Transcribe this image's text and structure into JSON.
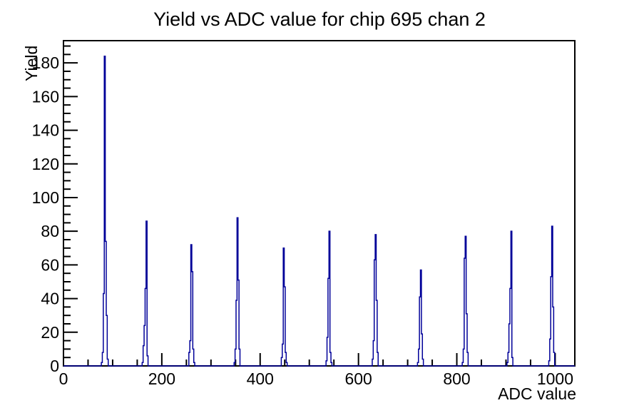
{
  "page": {
    "background_color": "#ffffff"
  },
  "chart_data": {
    "type": "bar",
    "title": "Yield vs ADC value for chip 695 chan 2",
    "xlabel": "ADC value",
    "ylabel": "Yield",
    "xlim": [
      0,
      1040
    ],
    "ylim": [
      0,
      193.2
    ],
    "x_major_ticks": [
      0,
      200,
      400,
      600,
      800,
      1000
    ],
    "x_minor_step": 50,
    "y_major_ticks": [
      0,
      20,
      40,
      60,
      80,
      100,
      120,
      140,
      160,
      180
    ],
    "y_minor_step": 5,
    "grid": false,
    "legend": false,
    "line_color": "#000099",
    "axis_color": "#000000",
    "bin_width": 2,
    "peaks": [
      {
        "adc": 84,
        "yield": 184
      },
      {
        "adc": 169,
        "yield": 86
      },
      {
        "adc": 260,
        "yield": 72
      },
      {
        "adc": 354,
        "yield": 88
      },
      {
        "adc": 448,
        "yield": 70
      },
      {
        "adc": 541,
        "yield": 80
      },
      {
        "adc": 635,
        "yield": 78
      },
      {
        "adc": 727,
        "yield": 57
      },
      {
        "adc": 818,
        "yield": 77
      },
      {
        "adc": 911,
        "yield": 80
      },
      {
        "adc": 994,
        "yield": 83
      }
    ],
    "clusters": [
      {
        "center": 84,
        "bins": [
          [
            -6,
            2
          ],
          [
            -4,
            8
          ],
          [
            -2,
            43
          ],
          [
            0,
            184
          ],
          [
            2,
            74
          ],
          [
            4,
            30
          ],
          [
            6,
            4
          ]
        ]
      },
      {
        "center": 169,
        "bins": [
          [
            -8,
            2
          ],
          [
            -6,
            12
          ],
          [
            -4,
            24
          ],
          [
            -2,
            46
          ],
          [
            0,
            86
          ],
          [
            2,
            6
          ]
        ]
      },
      {
        "center": 260,
        "bins": [
          [
            -4,
            8
          ],
          [
            -2,
            15
          ],
          [
            0,
            72
          ],
          [
            2,
            56
          ],
          [
            4,
            10
          ],
          [
            6,
            2
          ]
        ]
      },
      {
        "center": 354,
        "bins": [
          [
            -6,
            2
          ],
          [
            -4,
            10
          ],
          [
            -2,
            39
          ],
          [
            0,
            88
          ],
          [
            2,
            51
          ],
          [
            4,
            10
          ]
        ]
      },
      {
        "center": 448,
        "bins": [
          [
            -4,
            5
          ],
          [
            -2,
            13
          ],
          [
            0,
            70
          ],
          [
            2,
            47
          ],
          [
            4,
            8
          ],
          [
            6,
            2
          ]
        ]
      },
      {
        "center": 541,
        "bins": [
          [
            -6,
            3
          ],
          [
            -4,
            17
          ],
          [
            -2,
            52
          ],
          [
            0,
            80
          ],
          [
            2,
            8
          ],
          [
            4,
            2
          ]
        ]
      },
      {
        "center": 635,
        "bins": [
          [
            -6,
            4
          ],
          [
            -4,
            15
          ],
          [
            -2,
            63
          ],
          [
            0,
            78
          ],
          [
            2,
            39
          ],
          [
            4,
            8
          ]
        ]
      },
      {
        "center": 727,
        "bins": [
          [
            -6,
            2
          ],
          [
            -4,
            10
          ],
          [
            -2,
            41
          ],
          [
            0,
            57
          ],
          [
            2,
            19
          ],
          [
            4,
            4
          ]
        ]
      },
      {
        "center": 818,
        "bins": [
          [
            -6,
            2
          ],
          [
            -4,
            10
          ],
          [
            -2,
            64
          ],
          [
            0,
            77
          ],
          [
            2,
            31
          ],
          [
            4,
            8
          ]
        ]
      },
      {
        "center": 911,
        "bins": [
          [
            -8,
            2
          ],
          [
            -6,
            8
          ],
          [
            -4,
            25
          ],
          [
            -2,
            46
          ],
          [
            0,
            80
          ],
          [
            2,
            5
          ]
        ]
      },
      {
        "center": 994,
        "bins": [
          [
            -6,
            3
          ],
          [
            -4,
            16
          ],
          [
            -2,
            53
          ],
          [
            0,
            83
          ],
          [
            2,
            35
          ],
          [
            4,
            8
          ]
        ]
      }
    ]
  }
}
